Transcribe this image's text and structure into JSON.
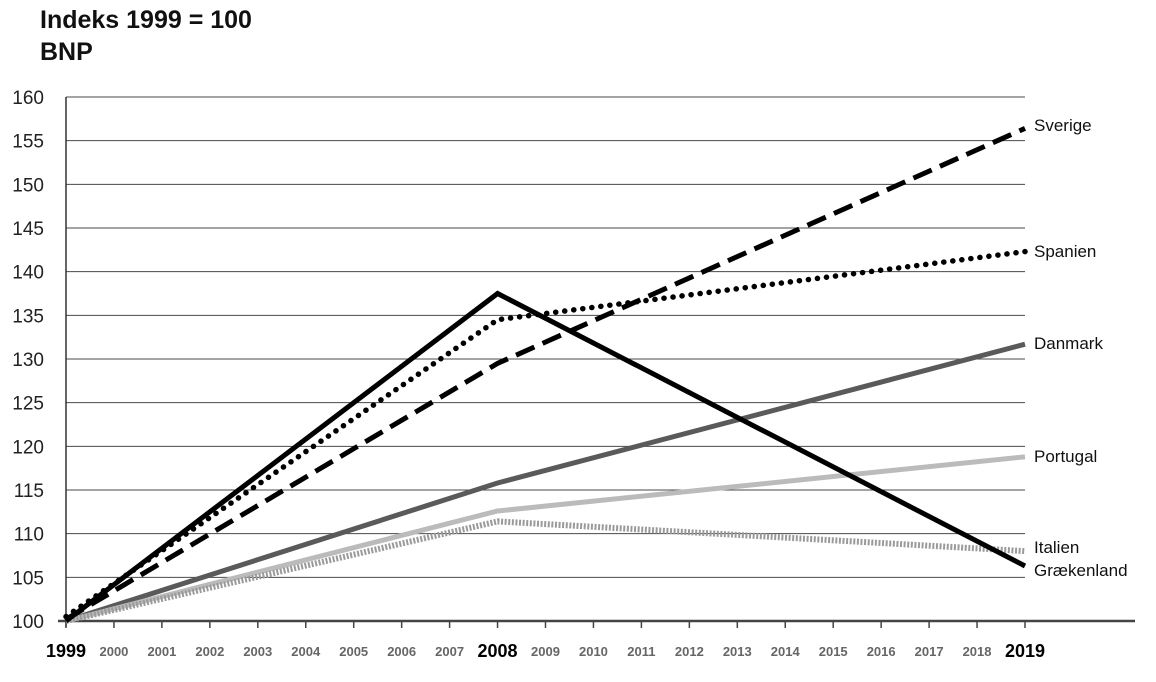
{
  "chart_data": {
    "type": "line",
    "title": "Indeks 1999 = 100",
    "subtitle": "BNP",
    "xlabel": "",
    "ylabel": "",
    "ylim": [
      100,
      160
    ],
    "yticks": [
      "100",
      "105",
      "110",
      "115",
      "120",
      "125",
      "130",
      "135",
      "140",
      "145",
      "150",
      "155",
      "160"
    ],
    "x": [
      "1999",
      "2000",
      "2001",
      "2002",
      "2003",
      "2004",
      "2005",
      "2006",
      "2007",
      "2008",
      "2009",
      "2010",
      "2011",
      "2012",
      "2013",
      "2014",
      "2015",
      "2016",
      "2017",
      "2018",
      "2019"
    ],
    "major_ticks": [
      "1999",
      "2008",
      "2019"
    ],
    "grid": true,
    "series": [
      {
        "name": "Sverige",
        "color": "#000000",
        "style": "dashed",
        "points": [
          [
            1999,
            100.2
          ],
          [
            2008,
            129.5
          ],
          [
            2019,
            156.4
          ]
        ]
      },
      {
        "name": "Spanien",
        "color": "#000000",
        "style": "dotted",
        "points": [
          [
            1999,
            100.5
          ],
          [
            2008,
            134.5
          ],
          [
            2019,
            142.3
          ]
        ]
      },
      {
        "name": "Danmark",
        "color": "#5a5a5a",
        "style": "solid",
        "points": [
          [
            1999,
            100.0
          ],
          [
            2008,
            115.8
          ],
          [
            2019,
            131.7
          ]
        ]
      },
      {
        "name": "Portugal",
        "color": "#bbbbbb",
        "style": "solid",
        "points": [
          [
            1999,
            100.0
          ],
          [
            2008,
            112.6
          ],
          [
            2019,
            118.8
          ]
        ]
      },
      {
        "name": "Italien",
        "color": "#9a9a9a",
        "style": "hatched",
        "points": [
          [
            1999,
            100.0
          ],
          [
            2008,
            111.4
          ],
          [
            2019,
            108.0
          ]
        ]
      },
      {
        "name": "Grækenland",
        "color": "#000000",
        "style": "solid",
        "points": [
          [
            1999,
            100.0
          ],
          [
            2008,
            137.5
          ],
          [
            2019,
            106.3
          ]
        ]
      }
    ]
  }
}
